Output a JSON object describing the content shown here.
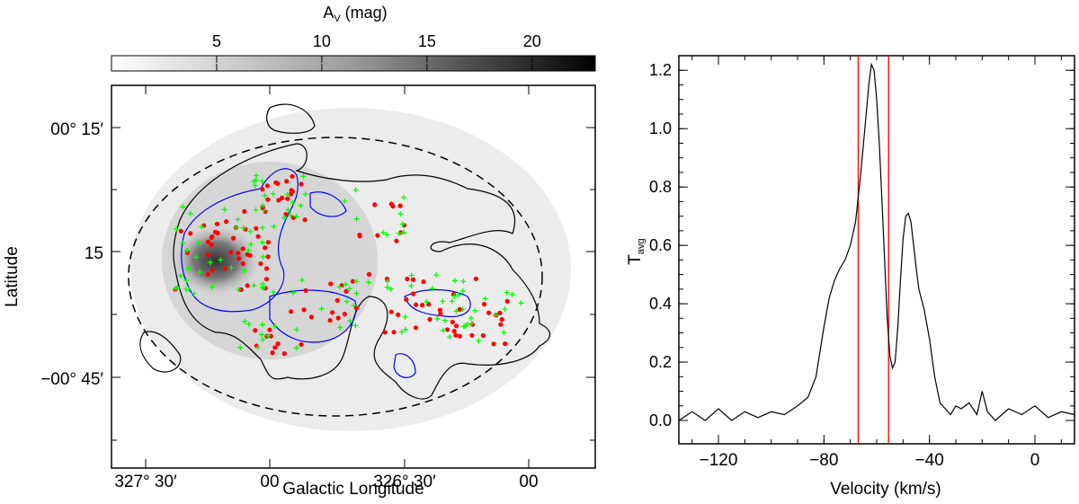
{
  "colorbar": {
    "label": "A_v (mag)",
    "label_main": "A",
    "label_sub": "V",
    "label_unit": " (mag)",
    "ticks": [
      "5",
      "10",
      "15",
      "20"
    ],
    "range": [
      0,
      23
    ],
    "cmap": [
      "#ffffff",
      "#000000"
    ]
  },
  "left_panel": {
    "xlabel": "Galactic Longitude",
    "ylabel": "Latitude",
    "xticks": [
      "327° 30′",
      "00",
      "326° 30′",
      "00"
    ],
    "yticks": [
      "00° 15′",
      "15",
      "−00° 45′"
    ],
    "colors": {
      "contour_low": "#000000",
      "contour_high": "#0000ff",
      "points_a": "#ff0000",
      "points_b": "#00ff00",
      "ellipse": "#000000"
    }
  },
  "chart_data": {
    "type": "line",
    "title": "",
    "xlabel": "Velocity (km/s)",
    "ylabel_main": "T",
    "ylabel_sub": "avg",
    "xlim": [
      -135,
      15
    ],
    "ylim": [
      -0.08,
      1.25
    ],
    "xticks": [
      -120,
      -80,
      -40,
      0
    ],
    "xtick_labels": [
      "−120",
      "−80",
      "−40",
      "0"
    ],
    "yticks": [
      0.0,
      0.2,
      0.4,
      0.6,
      0.8,
      1.0,
      1.2
    ],
    "ytick_labels": [
      "0.0",
      "0.2",
      "0.4",
      "0.6",
      "0.8",
      "1.0",
      "1.2"
    ],
    "vlines": [
      -67,
      -55.5
    ],
    "vline_color": "#ff0000",
    "series": [
      {
        "x": [
          -135,
          -130,
          -125,
          -120,
          -115,
          -110,
          -105,
          -100,
          -95,
          -90,
          -86,
          -83,
          -80,
          -78,
          -76,
          -74,
          -72,
          -70,
          -68,
          -66,
          -64,
          -63,
          -62,
          -61,
          -60,
          -59,
          -58,
          -57,
          -56,
          -55,
          -54,
          -53,
          -52,
          -51,
          -50,
          -49,
          -48,
          -47,
          -46,
          -45,
          -44,
          -42,
          -40,
          -38,
          -36,
          -34,
          -32,
          -30,
          -28,
          -25,
          -22,
          -20,
          -18,
          -15,
          -10,
          -5,
          0,
          5,
          10,
          15
        ],
        "y": [
          0.0,
          0.03,
          0.0,
          0.04,
          0.0,
          0.03,
          0.01,
          0.03,
          0.02,
          0.05,
          0.08,
          0.15,
          0.32,
          0.42,
          0.48,
          0.52,
          0.55,
          0.6,
          0.68,
          0.85,
          1.05,
          1.15,
          1.22,
          1.2,
          1.1,
          0.95,
          0.75,
          0.55,
          0.35,
          0.22,
          0.18,
          0.2,
          0.32,
          0.48,
          0.62,
          0.7,
          0.71,
          0.68,
          0.6,
          0.52,
          0.45,
          0.38,
          0.28,
          0.15,
          0.06,
          0.04,
          0.02,
          0.05,
          0.04,
          0.06,
          0.02,
          0.1,
          0.03,
          0.0,
          0.04,
          0.02,
          0.05,
          0.01,
          0.03,
          0.02
        ],
        "color": "#000000"
      }
    ]
  }
}
